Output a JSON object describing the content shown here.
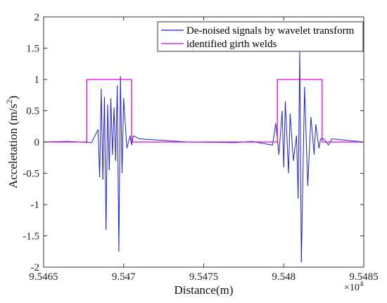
{
  "chart_data": {
    "type": "line",
    "xlabel": "Distance(m)",
    "ylabel_main": "Acceletation (m/s",
    "ylabel_sup": "2",
    "ylabel_close": ")",
    "x_exponent_base": "×10",
    "x_exponent_power": "4",
    "xlim": [
      9.5465,
      9.5485
    ],
    "ylim": [
      -2,
      2
    ],
    "x_ticks": [
      9.5465,
      9.547,
      9.5475,
      9.548,
      9.5485
    ],
    "x_tick_labels": [
      "9.5465",
      "9.547",
      "9.5475",
      "9.548",
      "9.5485"
    ],
    "y_ticks": [
      -2,
      -1.5,
      -1,
      -0.5,
      0,
      0.5,
      1,
      1.5,
      2
    ],
    "y_tick_labels": [
      "-2",
      "-1.5",
      "-1",
      "-0.5",
      "0",
      "0.5",
      "1",
      "1.5",
      "2"
    ],
    "grid": false,
    "legend_position": "top-right",
    "series": [
      {
        "name": "De-noised signals by wavelet transform",
        "color": "#1f1fd6",
        "x": [
          9.5465,
          9.54665,
          9.5468,
          9.54684,
          9.54685,
          9.54686,
          9.54687,
          9.54688,
          9.54689,
          9.5469,
          9.54691,
          9.54692,
          9.54693,
          9.54694,
          9.54695,
          9.54696,
          9.54697,
          9.54698,
          9.54699,
          9.547,
          9.54702,
          9.54704,
          9.54705,
          9.54706,
          9.5471,
          9.5474,
          9.5477,
          9.5478,
          9.54793,
          9.54795,
          9.54797,
          9.54799,
          9.548,
          9.54801,
          9.54803,
          9.54804,
          9.54806,
          9.54808,
          9.54809,
          9.5481,
          9.54811,
          9.54813,
          9.54815,
          9.54817,
          9.54819,
          9.5482,
          9.54822,
          9.54823,
          9.54825,
          9.54828,
          9.5483,
          9.5485
        ],
        "y": [
          0,
          0.01,
          -0.01,
          0.2,
          -0.56,
          0.85,
          -0.6,
          0.72,
          -1.4,
          0.6,
          -0.45,
          0.7,
          -0.2,
          0.55,
          -0.3,
          0.9,
          -1.75,
          1.05,
          -0.5,
          0.7,
          -0.1,
          0.1,
          -0.05,
          0.1,
          0.05,
          0,
          -0.01,
          0.01,
          -0.05,
          0.3,
          -0.2,
          0.5,
          -0.4,
          0.65,
          -0.5,
          0.45,
          -0.3,
          0.1,
          -0.9,
          1.45,
          -1.92,
          0.88,
          -0.7,
          0.4,
          -0.2,
          0.28,
          -0.1,
          0.05,
          0.05,
          -0.05,
          0.05,
          0
        ]
      },
      {
        "name": "identified girth welds",
        "color": "#e600e6",
        "x": [
          9.5465,
          9.54677,
          9.54677,
          9.54705,
          9.54705,
          9.54796,
          9.54796,
          9.54824,
          9.54824,
          9.5485
        ],
        "y": [
          0,
          0,
          1,
          1,
          0,
          0,
          1,
          1,
          0,
          0
        ]
      }
    ]
  }
}
